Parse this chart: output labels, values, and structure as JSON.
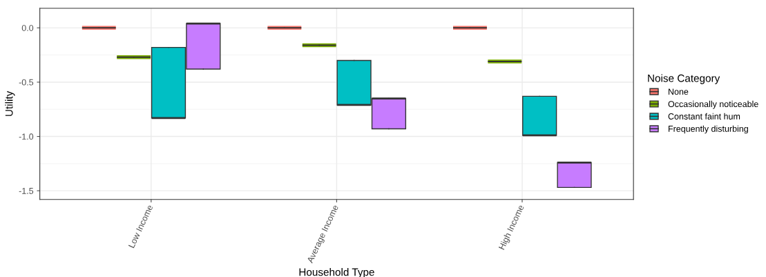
{
  "chart_data": {
    "type": "box",
    "xlabel": "Household Type",
    "ylabel": "Utility",
    "legend_title": "Noise Category",
    "categories": [
      "Low Income",
      "Average Income",
      "High Income"
    ],
    "series": [
      {
        "name": "None",
        "color": "#f8766d",
        "boxes": [
          {
            "low": 0,
            "q1": 0,
            "median": 0,
            "q3": 0,
            "high": 0
          },
          {
            "low": 0,
            "q1": 0,
            "median": 0,
            "q3": 0,
            "high": 0
          },
          {
            "low": 0,
            "q1": 0,
            "median": 0,
            "q3": 0,
            "high": 0
          }
        ]
      },
      {
        "name": "Occasionally noticeable",
        "color": "#7cae00",
        "boxes": [
          {
            "low": -0.27,
            "q1": -0.27,
            "median": -0.27,
            "q3": -0.27,
            "high": -0.27
          },
          {
            "low": -0.16,
            "q1": -0.16,
            "median": -0.16,
            "q3": -0.16,
            "high": -0.16
          },
          {
            "low": -0.31,
            "q1": -0.31,
            "median": -0.31,
            "q3": -0.31,
            "high": -0.31
          }
        ]
      },
      {
        "name": "Constant faint hum",
        "color": "#00bfc4",
        "boxes": [
          {
            "low": -0.83,
            "q1": -0.83,
            "median": -0.83,
            "q3": -0.18,
            "high": -0.18
          },
          {
            "low": -0.71,
            "q1": -0.71,
            "median": -0.71,
            "q3": -0.3,
            "high": -0.3
          },
          {
            "low": -0.99,
            "q1": -0.99,
            "median": -0.99,
            "q3": -0.63,
            "high": -0.63
          }
        ]
      },
      {
        "name": "Frequently disturbing",
        "color": "#c77cff",
        "boxes": [
          {
            "low": -0.38,
            "q1": -0.38,
            "median": 0.04,
            "q3": 0.04,
            "high": 0.04
          },
          {
            "low": -0.93,
            "q1": -0.93,
            "median": -0.65,
            "q3": -0.65,
            "high": -0.65
          },
          {
            "low": -1.47,
            "q1": -1.47,
            "median": -1.24,
            "q3": -1.24,
            "high": -1.24
          }
        ]
      }
    ],
    "ylim": [
      -1.58,
      0.18
    ],
    "yticks": [
      {
        "value": -1.5,
        "label": "-1.5"
      },
      {
        "value": -1.0,
        "label": "-1.0"
      },
      {
        "value": -0.5,
        "label": "-0.5"
      },
      {
        "value": 0,
        "label": "0.0"
      }
    ],
    "grid": true,
    "legend": "right"
  }
}
